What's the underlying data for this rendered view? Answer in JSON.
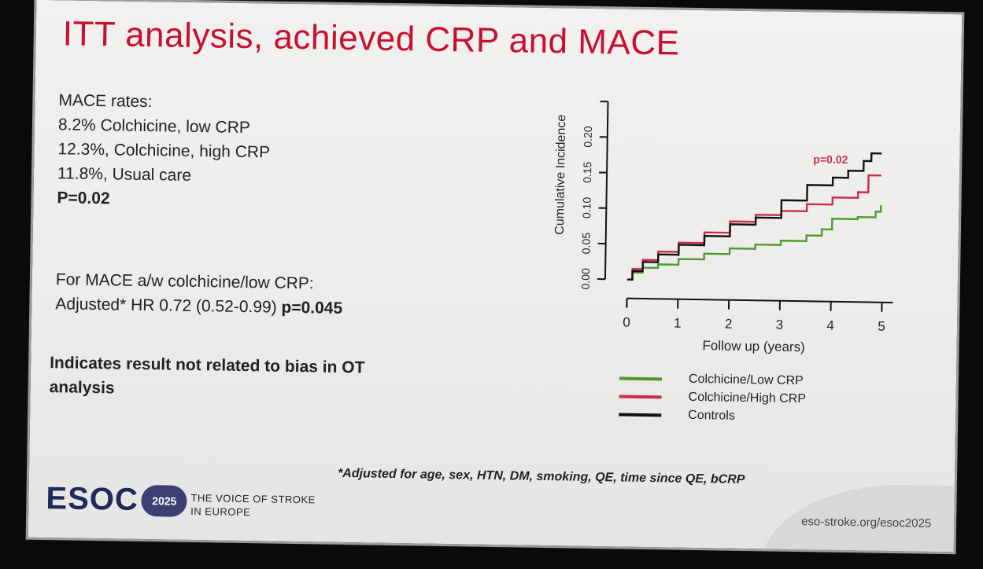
{
  "slide": {
    "title": "ITT analysis, achieved CRP and MACE",
    "mace_rates": {
      "heading": "MACE rates:",
      "lines": [
        "8.2% Colchicine, low CRP",
        "12.3%, Colchicine, high CRP",
        "11.8%, Usual care"
      ],
      "p_value": "P=0.02"
    },
    "hr": {
      "line1": "For MACE a/w colchicine/low CRP:",
      "line2_text": "Adjusted* HR 0.72 (0.52-0.99) ",
      "line2_p": "p=0.045"
    },
    "conclusion": "Indicates result not related to bias in OT analysis",
    "footnote": "*Adjusted for age, sex, HTN, DM, smoking, QE, time since QE, bCRP",
    "footer": {
      "logo": "ESOC",
      "year": "2025",
      "tagline_line1": "THE VOICE OF STROKE",
      "tagline_line2": "IN EUROPE",
      "url": "eso-stroke.org/esoc2025"
    }
  },
  "colors": {
    "title": "#c8102e",
    "low_crp": "#4d9a2c",
    "high_crp": "#cc2b52",
    "controls": "#111111"
  },
  "chart_data": {
    "type": "line",
    "step": true,
    "xlabel": "Follow up (years)",
    "ylabel": "Cumulative Incidence",
    "xlim": [
      0,
      5
    ],
    "ylim": [
      0,
      0.25
    ],
    "xticks": [
      0,
      1,
      2,
      3,
      4,
      5
    ],
    "yticks": [
      0.0,
      0.05,
      0.1,
      0.15,
      0.2
    ],
    "ytick_labels": [
      "0.00",
      "0.05",
      "0.10",
      "0.15",
      "0.20"
    ],
    "annotation": "p=0.02",
    "legend_position": "bottom",
    "series": [
      {
        "name": "Colchicine/Low CRP",
        "color": "#4d9a2c",
        "x": [
          0,
          0.1,
          0.3,
          0.6,
          1.0,
          1.5,
          2.0,
          2.5,
          3.0,
          3.5,
          3.8,
          4.0,
          4.5,
          4.85,
          4.95
        ],
        "y": [
          0,
          0.01,
          0.017,
          0.022,
          0.03,
          0.038,
          0.046,
          0.052,
          0.058,
          0.066,
          0.075,
          0.09,
          0.093,
          0.101,
          0.11
        ]
      },
      {
        "name": "Colchicine/High CRP",
        "color": "#cc2b52",
        "x": [
          0,
          0.1,
          0.3,
          0.6,
          1.0,
          1.5,
          2.0,
          2.5,
          3.0,
          3.5,
          4.0,
          4.5,
          4.7,
          4.95
        ],
        "y": [
          0,
          0.015,
          0.028,
          0.04,
          0.053,
          0.068,
          0.084,
          0.094,
          0.1,
          0.11,
          0.12,
          0.128,
          0.152,
          0.152
        ]
      },
      {
        "name": "Controls",
        "color": "#111111",
        "x": [
          0,
          0.1,
          0.3,
          0.6,
          1.0,
          1.5,
          2.0,
          2.5,
          3.0,
          3.5,
          4.0,
          4.3,
          4.6,
          4.75,
          4.95
        ],
        "y": [
          0,
          0.012,
          0.025,
          0.036,
          0.05,
          0.063,
          0.08,
          0.09,
          0.115,
          0.137,
          0.148,
          0.158,
          0.172,
          0.183,
          0.183
        ]
      }
    ]
  }
}
